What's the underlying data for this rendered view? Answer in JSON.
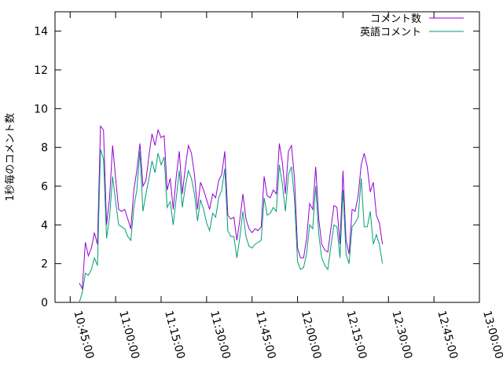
{
  "chart_data": {
    "type": "line",
    "title": "",
    "xlabel": "",
    "ylabel": "1秒毎のコメント数",
    "ylim": [
      0,
      15
    ],
    "yticks": [
      0,
      2,
      4,
      6,
      8,
      10,
      12,
      14
    ],
    "xlim": [
      "10:40:00",
      "13:00:00"
    ],
    "xticks": [
      "10:45:00",
      "11:00:00",
      "11:15:00",
      "11:30:00",
      "11:45:00",
      "12:00:00",
      "12:15:00",
      "12:30:00",
      "12:45:00",
      "13:00:00"
    ],
    "grid": false,
    "legend_position": "top-right",
    "series": [
      {
        "name": "コメント数",
        "color": "#9400d3",
        "points": [
          [
            "10:48:00",
            1.0
          ],
          [
            "10:49:00",
            0.7
          ],
          [
            "10:50:00",
            3.1
          ],
          [
            "10:51:00",
            2.4
          ],
          [
            "10:52:00",
            2.8
          ],
          [
            "10:53:00",
            3.6
          ],
          [
            "10:54:00",
            3.0
          ],
          [
            "10:55:00",
            9.1
          ],
          [
            "10:56:00",
            8.9
          ],
          [
            "10:57:00",
            4.0
          ],
          [
            "10:58:00",
            5.4
          ],
          [
            "10:59:00",
            8.1
          ],
          [
            "11:00:00",
            6.4
          ],
          [
            "11:01:00",
            4.8
          ],
          [
            "11:02:00",
            4.7
          ],
          [
            "11:03:00",
            4.8
          ],
          [
            "11:04:00",
            4.3
          ],
          [
            "11:05:00",
            3.8
          ],
          [
            "11:06:00",
            5.8
          ],
          [
            "11:07:00",
            6.8
          ],
          [
            "11:08:00",
            8.2
          ],
          [
            "11:09:00",
            6.0
          ],
          [
            "11:10:00",
            6.3
          ],
          [
            "11:11:00",
            7.6
          ],
          [
            "11:12:00",
            8.7
          ],
          [
            "11:13:00",
            8.1
          ],
          [
            "11:14:00",
            8.9
          ],
          [
            "11:15:00",
            8.5
          ],
          [
            "11:16:00",
            8.6
          ],
          [
            "11:17:00",
            5.8
          ],
          [
            "11:18:00",
            6.4
          ],
          [
            "11:19:00",
            4.8
          ],
          [
            "11:20:00",
            6.5
          ],
          [
            "11:21:00",
            7.8
          ],
          [
            "11:22:00",
            5.6
          ],
          [
            "11:23:00",
            7.0
          ],
          [
            "11:24:00",
            8.1
          ],
          [
            "11:25:00",
            7.7
          ],
          [
            "11:26:00",
            6.6
          ],
          [
            "11:27:00",
            4.8
          ],
          [
            "11:28:00",
            6.2
          ],
          [
            "11:29:00",
            5.8
          ],
          [
            "11:30:00",
            5.3
          ],
          [
            "11:31:00",
            4.8
          ],
          [
            "11:32:00",
            5.6
          ],
          [
            "11:33:00",
            5.4
          ],
          [
            "11:34:00",
            6.3
          ],
          [
            "11:35:00",
            6.6
          ],
          [
            "11:36:00",
            7.8
          ],
          [
            "11:37:00",
            4.5
          ],
          [
            "11:38:00",
            4.3
          ],
          [
            "11:39:00",
            4.4
          ],
          [
            "11:40:00",
            3.2
          ],
          [
            "11:41:00",
            4.3
          ],
          [
            "11:42:00",
            5.6
          ],
          [
            "11:43:00",
            4.3
          ],
          [
            "11:44:00",
            3.8
          ],
          [
            "11:45:00",
            3.6
          ],
          [
            "11:46:00",
            3.8
          ],
          [
            "11:47:00",
            3.7
          ],
          [
            "11:48:00",
            3.9
          ],
          [
            "11:49:00",
            6.5
          ],
          [
            "11:50:00",
            5.5
          ],
          [
            "11:51:00",
            5.4
          ],
          [
            "11:52:00",
            5.8
          ],
          [
            "11:53:00",
            5.6
          ],
          [
            "11:54:00",
            8.2
          ],
          [
            "11:55:00",
            7.2
          ],
          [
            "11:56:00",
            5.6
          ],
          [
            "11:57:00",
            7.8
          ],
          [
            "11:58:00",
            8.1
          ],
          [
            "11:59:00",
            6.4
          ],
          [
            "12:00:00",
            2.8
          ],
          [
            "12:01:00",
            2.3
          ],
          [
            "12:02:00",
            2.3
          ],
          [
            "12:03:00",
            3.3
          ],
          [
            "12:04:00",
            5.1
          ],
          [
            "12:05:00",
            4.8
          ],
          [
            "12:06:00",
            7.0
          ],
          [
            "12:07:00",
            4.3
          ],
          [
            "12:08:00",
            3.0
          ],
          [
            "12:09:00",
            2.7
          ],
          [
            "12:10:00",
            2.6
          ],
          [
            "12:11:00",
            3.8
          ],
          [
            "12:12:00",
            5.0
          ],
          [
            "12:13:00",
            4.9
          ],
          [
            "12:14:00",
            3.0
          ],
          [
            "12:15:00",
            6.8
          ],
          [
            "12:16:00",
            3.2
          ],
          [
            "12:17:00",
            2.5
          ],
          [
            "12:18:00",
            4.8
          ],
          [
            "12:19:00",
            4.7
          ],
          [
            "12:20:00",
            5.5
          ],
          [
            "12:21:00",
            7.1
          ],
          [
            "12:22:00",
            7.7
          ],
          [
            "12:23:00",
            7.0
          ],
          [
            "12:24:00",
            5.7
          ],
          [
            "12:25:00",
            6.2
          ],
          [
            "12:26:00",
            4.5
          ],
          [
            "12:27:00",
            4.1
          ],
          [
            "12:28:00",
            3.0
          ]
        ]
      },
      {
        "name": "英語コメント",
        "color": "#009e73",
        "points": [
          [
            "10:48:00",
            0.0
          ],
          [
            "10:49:00",
            0.5
          ],
          [
            "10:50:00",
            1.5
          ],
          [
            "10:51:00",
            1.4
          ],
          [
            "10:52:00",
            1.7
          ],
          [
            "10:53:00",
            2.3
          ],
          [
            "10:54:00",
            1.9
          ],
          [
            "10:55:00",
            7.9
          ],
          [
            "10:56:00",
            7.4
          ],
          [
            "10:57:00",
            3.3
          ],
          [
            "10:58:00",
            4.4
          ],
          [
            "10:59:00",
            6.5
          ],
          [
            "11:00:00",
            5.2
          ],
          [
            "11:01:00",
            4.0
          ],
          [
            "11:02:00",
            3.9
          ],
          [
            "11:03:00",
            3.8
          ],
          [
            "11:04:00",
            3.4
          ],
          [
            "11:05:00",
            3.2
          ],
          [
            "11:06:00",
            4.9
          ],
          [
            "11:07:00",
            5.8
          ],
          [
            "11:08:00",
            7.8
          ],
          [
            "11:09:00",
            4.7
          ],
          [
            "11:10:00",
            5.6
          ],
          [
            "11:11:00",
            6.4
          ],
          [
            "11:12:00",
            7.3
          ],
          [
            "11:13:00",
            6.7
          ],
          [
            "11:14:00",
            7.7
          ],
          [
            "11:15:00",
            7.1
          ],
          [
            "11:16:00",
            7.5
          ],
          [
            "11:17:00",
            4.9
          ],
          [
            "11:18:00",
            5.2
          ],
          [
            "11:19:00",
            4.0
          ],
          [
            "11:20:00",
            5.4
          ],
          [
            "11:21:00",
            6.8
          ],
          [
            "11:22:00",
            4.9
          ],
          [
            "11:23:00",
            6.0
          ],
          [
            "11:24:00",
            6.8
          ],
          [
            "11:25:00",
            6.4
          ],
          [
            "11:26:00",
            5.6
          ],
          [
            "11:27:00",
            4.2
          ],
          [
            "11:28:00",
            5.3
          ],
          [
            "11:29:00",
            4.8
          ],
          [
            "11:30:00",
            4.1
          ],
          [
            "11:31:00",
            3.7
          ],
          [
            "11:32:00",
            4.6
          ],
          [
            "11:33:00",
            4.4
          ],
          [
            "11:34:00",
            5.4
          ],
          [
            "11:35:00",
            5.8
          ],
          [
            "11:36:00",
            6.9
          ],
          [
            "11:37:00",
            3.7
          ],
          [
            "11:38:00",
            3.4
          ],
          [
            "11:39:00",
            3.4
          ],
          [
            "11:40:00",
            2.3
          ],
          [
            "11:41:00",
            3.4
          ],
          [
            "11:42:00",
            4.7
          ],
          [
            "11:43:00",
            3.4
          ],
          [
            "11:44:00",
            2.9
          ],
          [
            "11:45:00",
            2.8
          ],
          [
            "11:46:00",
            3.0
          ],
          [
            "11:47:00",
            3.1
          ],
          [
            "11:48:00",
            3.2
          ],
          [
            "11:49:00",
            5.4
          ],
          [
            "11:50:00",
            4.5
          ],
          [
            "11:51:00",
            4.6
          ],
          [
            "11:52:00",
            4.9
          ],
          [
            "11:53:00",
            4.7
          ],
          [
            "11:54:00",
            7.1
          ],
          [
            "11:55:00",
            6.1
          ],
          [
            "11:56:00",
            4.7
          ],
          [
            "11:57:00",
            6.6
          ],
          [
            "11:58:00",
            7.0
          ],
          [
            "11:59:00",
            5.3
          ],
          [
            "12:00:00",
            2.1
          ],
          [
            "12:01:00",
            1.7
          ],
          [
            "12:02:00",
            1.8
          ],
          [
            "12:03:00",
            2.5
          ],
          [
            "12:04:00",
            4.0
          ],
          [
            "12:05:00",
            3.8
          ],
          [
            "12:06:00",
            6.0
          ],
          [
            "12:07:00",
            3.5
          ],
          [
            "12:08:00",
            2.3
          ],
          [
            "12:09:00",
            1.9
          ],
          [
            "12:10:00",
            1.7
          ],
          [
            "12:11:00",
            2.9
          ],
          [
            "12:12:00",
            4.0
          ],
          [
            "12:13:00",
            3.9
          ],
          [
            "12:14:00",
            2.3
          ],
          [
            "12:15:00",
            5.8
          ],
          [
            "12:16:00",
            2.5
          ],
          [
            "12:17:00",
            2.0
          ],
          [
            "12:18:00",
            3.9
          ],
          [
            "12:19:00",
            4.1
          ],
          [
            "12:20:00",
            4.4
          ],
          [
            "12:21:00",
            6.4
          ],
          [
            "12:22:00",
            3.9
          ],
          [
            "12:23:00",
            3.9
          ],
          [
            "12:24:00",
            4.7
          ],
          [
            "12:25:00",
            3.0
          ],
          [
            "12:26:00",
            3.5
          ],
          [
            "12:27:00",
            3.0
          ],
          [
            "12:28:00",
            2.0
          ]
        ]
      }
    ]
  }
}
